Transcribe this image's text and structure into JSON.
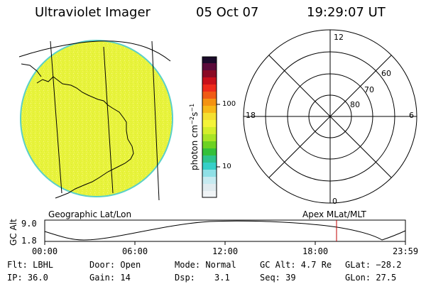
{
  "header": {
    "title": "Ultraviolet Imager",
    "date": "05 Oct 07",
    "time": "19:29:07 UT"
  },
  "colorbar": {
    "unit_main": "photon cm",
    "unit_sup1": "−2",
    "unit_mid": "s",
    "unit_sup2": "−1",
    "tick_100": "100",
    "tick_10": "10"
  },
  "geo_panel": {
    "label": "Geographic Lat/Lon"
  },
  "polar_panel": {
    "label": "Apex MLat/MLT",
    "mlt_top": "12",
    "mlt_left": "18",
    "mlt_right": "6",
    "mlt_bottom": "0",
    "lat_60": "60",
    "lat_70": "70",
    "lat_80": "80"
  },
  "altitude_plot": {
    "ylabel": "GC Alt",
    "ymax": "9.0",
    "ymin": "1.8",
    "x_ticks": [
      "00:00",
      "06:00",
      "12:00",
      "18:00",
      "23:59"
    ],
    "marker_color": "#c00000"
  },
  "footer": {
    "flt": "Flt: LBHL",
    "ip": "IP: 36.0",
    "door": "Door: Open",
    "gain": "Gain: 14",
    "mode": "Mode: Normal",
    "dsp_label": "Dsp:",
    "dsp_value": "3.1",
    "gc_alt": "GC Alt: 4.7 Re",
    "seq": "Seq: 39",
    "glat": "GLat: −28.2",
    "glon": "GLon: 27.5"
  },
  "colors": {
    "disk_fill": "#e6f23a",
    "disk_edge": "#5ad0c8"
  }
}
